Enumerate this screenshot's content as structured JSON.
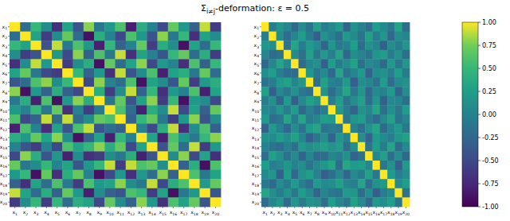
{
  "chart_data": {
    "type": "heatmap",
    "title": [
      "Σ",
      "i≠j",
      "-deformation: ε = 0.5"
    ],
    "categories": [
      "x1",
      "x2",
      "x3",
      "x4",
      "x5",
      "x6",
      "x7",
      "x8",
      "x9",
      "x10",
      "x11",
      "x12",
      "x13",
      "x14",
      "x15",
      "x16",
      "x17",
      "x18",
      "x19",
      "x20"
    ],
    "colorbar": {
      "range": [
        -1,
        1
      ],
      "ticks": [
        {
          "value": -1,
          "label": "-1.00"
        },
        {
          "value": -0.75,
          "label": "-0.75"
        },
        {
          "value": -0.5,
          "label": "-0.50"
        },
        {
          "value": -0.25,
          "label": "-0.25"
        },
        {
          "value": 0,
          "label": "0.00"
        },
        {
          "value": 0.25,
          "label": "0.25"
        },
        {
          "value": 0.5,
          "label": "0.50"
        },
        {
          "value": 0.75,
          "label": "0.75"
        },
        {
          "value": 1,
          "label": "1.00"
        }
      ]
    },
    "panels": [
      {
        "cells": [
          [
            1,
            -0.2,
            0.5,
            0.1,
            -0.7,
            0.3,
            -0.4,
            0.8,
            -0.1,
            0.2,
            0.6,
            -0.8,
            0.4,
            0,
            -0.5,
            0.7,
            0.2,
            -0.3,
            0.9,
            -0.6
          ],
          [
            -0.2,
            1,
            0.3,
            -0.6,
            0.1,
            0.7,
            -0.2,
            -0.9,
            0.4,
            0,
            -0.5,
            0.6,
            0.2,
            -0.4,
            0.8,
            -0.1,
            0.5,
            -0.7,
            0.3,
            0.1
          ],
          [
            0.5,
            0.3,
            1,
            -0.4,
            0.9,
            -0.1,
            0.6,
            0.2,
            -0.8,
            0.5,
            -0.3,
            0,
            0.7,
            -0.6,
            0.4,
            0.1,
            -0.9,
            0.3,
            -0.2,
            0.5
          ],
          [
            0.1,
            -0.6,
            -0.4,
            1,
            0.2,
            -0.5,
            0.8,
            -0.3,
            0.6,
            -0.1,
            0.9,
            -0.7,
            0.3,
            0,
            -0.4,
            0.5,
            0.7,
            -0.2,
            0.4,
            -0.6
          ],
          [
            -0.7,
            0.1,
            0.9,
            0.2,
            1,
            -0.6,
            0.1,
            0.4,
            -0.9,
            0.7,
            -0.2,
            0.3,
            0.8,
            -0.5,
            0.2,
            0,
            -0.7,
            0.6,
            -0.3,
            0.5
          ],
          [
            0.3,
            0.7,
            -0.1,
            -0.5,
            -0.6,
            1,
            0.5,
            -0.3,
            0.2,
            -0.7,
            0.9,
            -0.4,
            0.1,
            0.6,
            -0.8,
            0.3,
            0.4,
            -0.1,
            0.7,
            -0.2
          ],
          [
            -0.4,
            -0.2,
            0.6,
            0.8,
            0.1,
            0.5,
            1,
            -0.5,
            0.8,
            0,
            -0.2,
            0.6,
            -0.9,
            0.3,
            0.1,
            -0.4,
            0.7,
            -0.6,
            0.2,
            0.4
          ],
          [
            0.8,
            -0.9,
            0.2,
            -0.3,
            0.4,
            -0.3,
            -0.5,
            1,
            0.4,
            -0.6,
            0.1,
            0.9,
            -0.3,
            0.5,
            -0.7,
            0.2,
            0,
            0.6,
            -0.8,
            0.3
          ],
          [
            -0.1,
            0.4,
            -0.8,
            0.6,
            -0.9,
            0.2,
            0.8,
            0.4,
            1,
            -0.1,
            0.7,
            -0.4,
            0.3,
            0.8,
            -0.6,
            0.5,
            -0.9,
            0.2,
            0.1,
            -0.5
          ],
          [
            0.2,
            0,
            0.5,
            -0.1,
            0.7,
            -0.7,
            0,
            -0.6,
            -0.1,
            1,
            0.6,
            -0.2,
            -0.8,
            0.4,
            0.1,
            0.9,
            -0.5,
            0.3,
            -0.3,
            0.7
          ],
          [
            0.6,
            -0.5,
            -0.3,
            0.9,
            -0.2,
            0.9,
            -0.2,
            0.1,
            0.7,
            0.6,
            1,
            -0.3,
            0.5,
            0.7,
            -0.1,
            -0.6,
            0.2,
            0.8,
            -0.4,
            0.1
          ],
          [
            -0.8,
            0.6,
            0,
            -0.7,
            0.3,
            -0.4,
            0.6,
            0.9,
            -0.4,
            -0.2,
            -0.3,
            1,
            0,
            -0.5,
            0.4,
            0.9,
            -0.7,
            0.1,
            0.6,
            -0.3
          ],
          [
            0.4,
            0.2,
            0.7,
            0.3,
            0.8,
            0.1,
            -0.9,
            -0.3,
            0.3,
            -0.8,
            0.5,
            0,
            1,
            0.3,
            -0.8,
            0.6,
            0.2,
            -0.1,
            0.5,
            0.8
          ],
          [
            0,
            -0.4,
            -0.6,
            0,
            -0.5,
            0.6,
            0.3,
            0.5,
            0.8,
            0.4,
            0.7,
            -0.5,
            0.3,
            1,
            -0.4,
            0.7,
            -0.2,
            0.9,
            -0.6,
            0.2
          ],
          [
            -0.5,
            0.8,
            0.4,
            -0.4,
            0.2,
            -0.8,
            0.1,
            -0.7,
            -0.6,
            0.1,
            -0.1,
            0.4,
            -0.8,
            -0.4,
            1,
            0.1,
            0.8,
            -0.5,
            0.3,
            -0.7
          ],
          [
            0.7,
            -0.1,
            0.1,
            0.5,
            0,
            0.3,
            -0.4,
            0.2,
            0.5,
            0.9,
            -0.6,
            0.9,
            0.6,
            0.7,
            0.1,
            1,
            -0.3,
            0.4,
            -0.9,
            0.6
          ],
          [
            0.2,
            0.5,
            -0.9,
            0.7,
            -0.7,
            0.4,
            0.7,
            0,
            -0.9,
            -0.5,
            0.2,
            -0.7,
            0.2,
            -0.2,
            0.8,
            -0.3,
            1,
            0.6,
            -0.1,
            0.3
          ],
          [
            -0.3,
            -0.7,
            0.3,
            -0.2,
            0.6,
            -0.1,
            -0.6,
            0.6,
            0.2,
            0.3,
            0.8,
            0.1,
            -0.1,
            0.9,
            -0.5,
            0.4,
            0.6,
            1,
            0.2,
            0.7
          ],
          [
            0.9,
            0.3,
            -0.2,
            0.4,
            -0.3,
            0.7,
            0.2,
            -0.8,
            0.1,
            -0.3,
            -0.4,
            0.6,
            0.5,
            -0.6,
            0.3,
            -0.9,
            -0.1,
            0.2,
            1,
            -0.4
          ],
          [
            -0.6,
            0.1,
            0.5,
            -0.6,
            0.5,
            -0.2,
            0.4,
            0.3,
            -0.5,
            0.7,
            0.1,
            -0.3,
            0.8,
            0.2,
            -0.7,
            0.6,
            0.3,
            0.7,
            -0.4,
            1
          ]
        ]
      },
      {
        "cells": [
          [
            1,
            -0.07,
            0.18,
            0.04,
            -0.25,
            0.11,
            -0.14,
            0.28,
            -0.04,
            0.07,
            0.21,
            -0.28,
            0.14,
            0,
            -0.18,
            0.25,
            0.07,
            -0.11,
            0.32,
            -0.21
          ],
          [
            -0.07,
            1,
            0.11,
            -0.21,
            0.04,
            0.25,
            -0.07,
            -0.32,
            0.14,
            0,
            -0.18,
            0.21,
            0.07,
            -0.14,
            0.28,
            -0.04,
            0.18,
            -0.25,
            0.11,
            0.04
          ],
          [
            0.18,
            0.11,
            1,
            -0.14,
            0.32,
            -0.04,
            0.21,
            0.07,
            -0.28,
            0.18,
            -0.11,
            0,
            0.25,
            -0.21,
            0.14,
            0.04,
            -0.32,
            0.11,
            -0.07,
            0.18
          ],
          [
            0.04,
            -0.21,
            -0.14,
            1,
            0.07,
            -0.18,
            0.28,
            -0.11,
            0.21,
            -0.04,
            0.32,
            -0.25,
            0.11,
            0,
            -0.14,
            0.18,
            0.25,
            -0.07,
            0.14,
            -0.21
          ],
          [
            -0.25,
            0.04,
            0.32,
            0.07,
            1,
            -0.21,
            0.04,
            0.14,
            -0.32,
            0.25,
            -0.07,
            0.11,
            0.28,
            -0.18,
            0.07,
            0,
            -0.25,
            0.21,
            -0.11,
            0.18
          ],
          [
            0.11,
            0.25,
            -0.04,
            -0.18,
            -0.21,
            1,
            0.18,
            -0.11,
            0.07,
            -0.25,
            0.32,
            -0.14,
            0.04,
            0.21,
            -0.28,
            0.11,
            0.14,
            -0.04,
            0.25,
            -0.07
          ],
          [
            -0.14,
            -0.07,
            0.21,
            0.28,
            0.04,
            0.18,
            1,
            -0.18,
            0.28,
            0,
            -0.07,
            0.21,
            -0.32,
            0.11,
            0.04,
            -0.14,
            0.25,
            -0.21,
            0.07,
            0.14
          ],
          [
            0.28,
            -0.32,
            0.07,
            -0.11,
            0.14,
            -0.11,
            -0.18,
            1,
            0.14,
            -0.21,
            0.04,
            0.32,
            -0.11,
            0.18,
            -0.25,
            0.07,
            0,
            0.21,
            -0.28,
            0.11
          ],
          [
            -0.04,
            0.14,
            -0.28,
            0.21,
            -0.32,
            0.07,
            0.28,
            0.14,
            1,
            -0.04,
            0.25,
            -0.14,
            0.11,
            0.28,
            -0.21,
            0.18,
            -0.32,
            0.07,
            0.04,
            -0.18
          ],
          [
            0.07,
            0,
            0.18,
            -0.04,
            0.25,
            -0.25,
            0,
            -0.21,
            -0.04,
            1,
            0.21,
            -0.07,
            -0.28,
            0.14,
            0.04,
            0.32,
            -0.18,
            0.11,
            -0.11,
            0.25
          ],
          [
            0.21,
            -0.18,
            -0.11,
            0.32,
            -0.07,
            0.32,
            -0.07,
            0.04,
            0.25,
            0.21,
            1,
            -0.11,
            0.18,
            0.25,
            -0.04,
            -0.21,
            0.07,
            0.28,
            -0.14,
            0.04
          ],
          [
            -0.28,
            0.21,
            0,
            -0.25,
            0.11,
            -0.14,
            0.21,
            0.32,
            -0.14,
            -0.07,
            -0.11,
            1,
            0,
            -0.18,
            0.14,
            0.32,
            -0.25,
            0.04,
            0.21,
            -0.11
          ],
          [
            0.14,
            0.07,
            0.25,
            0.11,
            0.28,
            0.04,
            -0.32,
            -0.11,
            0.11,
            -0.28,
            0.18,
            0,
            1,
            0.11,
            -0.28,
            0.21,
            0.07,
            -0.04,
            0.18,
            0.28
          ],
          [
            0,
            -0.14,
            -0.21,
            0,
            -0.18,
            0.21,
            0.11,
            0.18,
            0.28,
            0.14,
            0.25,
            -0.18,
            0.11,
            1,
            -0.14,
            0.25,
            -0.07,
            0.32,
            -0.21,
            0.07
          ],
          [
            -0.18,
            0.28,
            0.14,
            -0.14,
            0.07,
            -0.28,
            0.04,
            -0.25,
            -0.21,
            0.04,
            -0.04,
            0.14,
            -0.28,
            -0.14,
            1,
            0.04,
            0.28,
            -0.18,
            0.11,
            -0.25
          ],
          [
            0.25,
            -0.04,
            0.04,
            0.18,
            0,
            0.11,
            -0.14,
            0.07,
            0.18,
            0.32,
            -0.21,
            0.32,
            0.21,
            0.25,
            0.04,
            1,
            -0.11,
            0.14,
            -0.32,
            0.21
          ],
          [
            0.07,
            0.18,
            -0.32,
            0.25,
            -0.25,
            0.14,
            0.25,
            0,
            -0.32,
            -0.18,
            0.07,
            -0.25,
            0.07,
            -0.07,
            0.28,
            -0.11,
            1,
            0.21,
            -0.04,
            0.11
          ],
          [
            -0.11,
            -0.25,
            0.11,
            -0.07,
            0.21,
            -0.04,
            -0.21,
            0.21,
            0.07,
            0.11,
            0.28,
            0.04,
            -0.04,
            0.32,
            -0.18,
            0.14,
            0.21,
            1,
            0.07,
            0.25
          ],
          [
            0.32,
            0.11,
            -0.07,
            0.14,
            -0.11,
            0.25,
            0.07,
            -0.28,
            0.04,
            -0.11,
            -0.14,
            0.21,
            0.18,
            -0.21,
            0.11,
            -0.32,
            -0.04,
            0.07,
            1,
            -0.14
          ],
          [
            -0.21,
            0.04,
            0.18,
            -0.21,
            0.18,
            -0.07,
            0.14,
            0.11,
            -0.18,
            0.25,
            0.04,
            -0.11,
            0.28,
            0.07,
            -0.25,
            0.21,
            0.11,
            0.25,
            -0.14,
            1
          ]
        ]
      }
    ]
  }
}
